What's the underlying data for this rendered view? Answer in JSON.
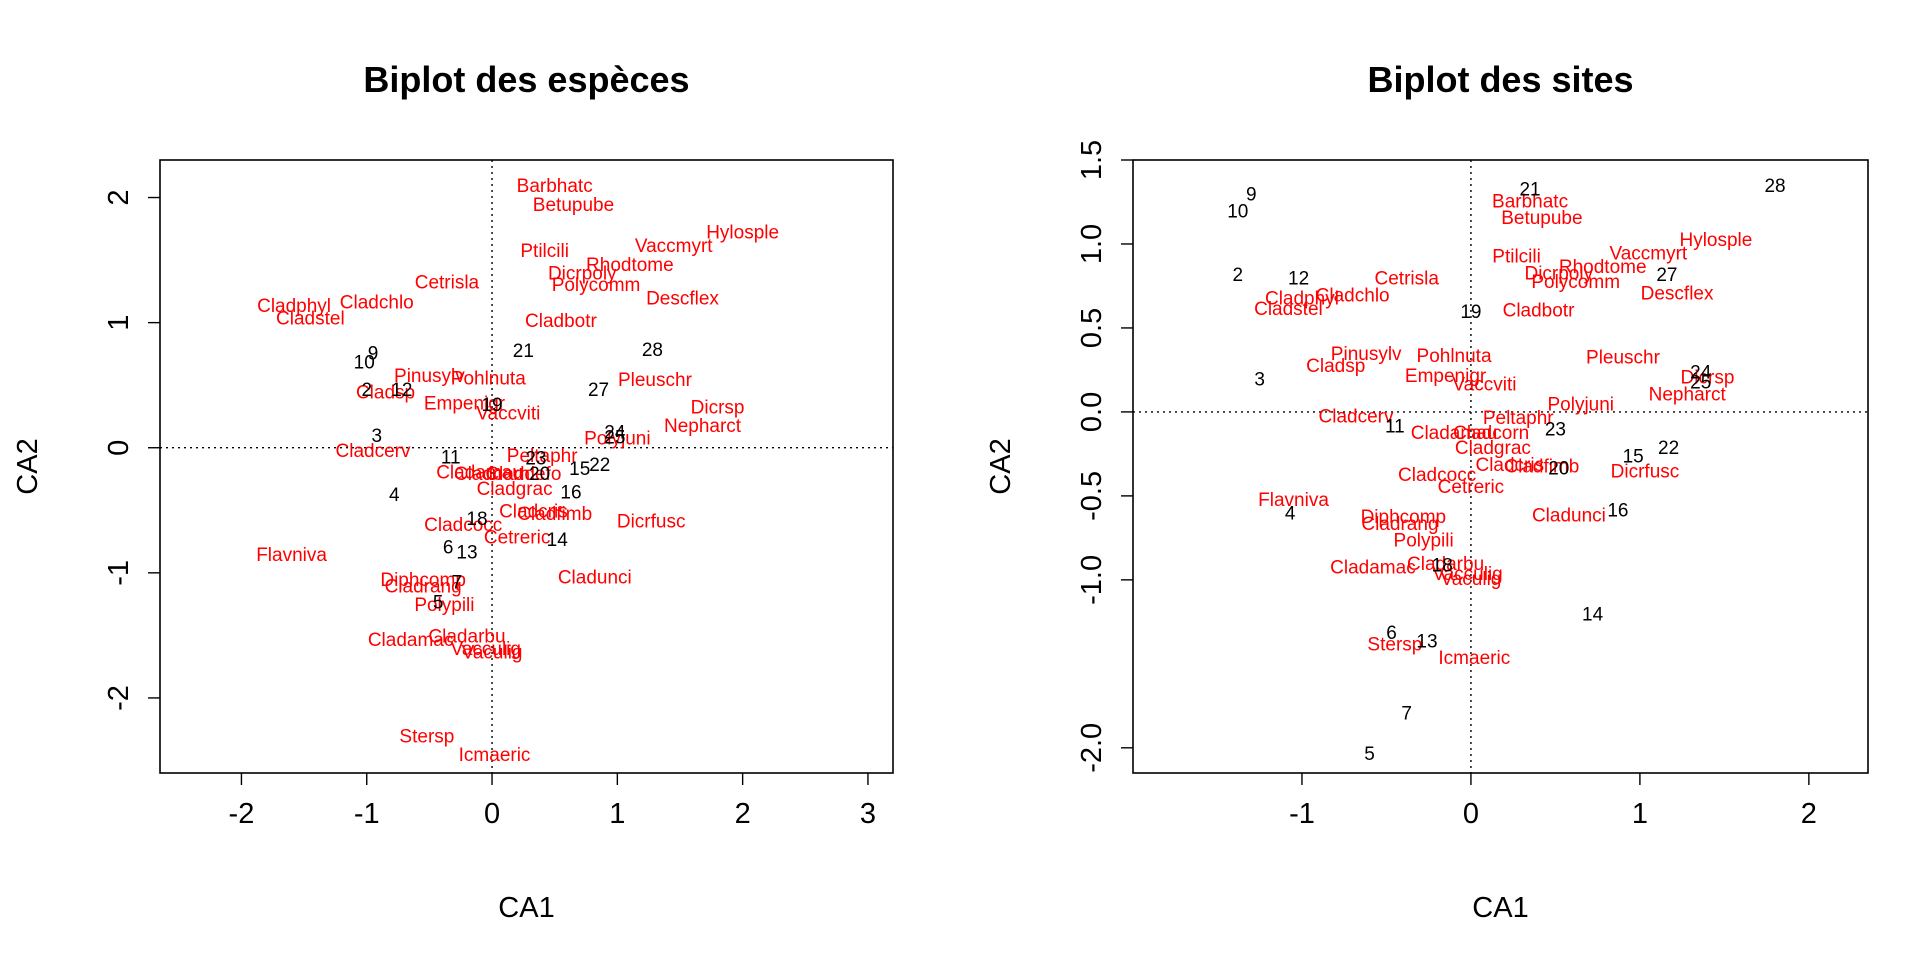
{
  "colors": {
    "species": "#ff0000",
    "sites": "#000000",
    "frame": "#000000"
  },
  "chart_data": [
    {
      "type": "scatter",
      "title": "Biplot des espèces",
      "xlabel": "CA1",
      "ylabel": "CA2",
      "xlim": [
        -2.65,
        3.2
      ],
      "ylim": [
        -2.6,
        2.3
      ],
      "xticks": [
        "-2",
        "-1",
        "0",
        "1",
        "2",
        "3"
      ],
      "yticks": [
        "-2",
        "-1",
        "0",
        "1",
        "2"
      ],
      "reference_lines": "dotted lines at x = 0 and y = 0",
      "series": [
        {
          "name": "species",
          "color": "#ff0000",
          "points": [
            {
              "label": "Barbhatc",
              "x": 0.5,
              "y": 2.1
            },
            {
              "label": "Betupube",
              "x": 0.65,
              "y": 1.95
            },
            {
              "label": "Hylosple",
              "x": 2.0,
              "y": 1.73
            },
            {
              "label": "Vaccmyrt",
              "x": 1.45,
              "y": 1.62
            },
            {
              "label": "Ptilcili",
              "x": 0.42,
              "y": 1.58
            },
            {
              "label": "Rhodtome",
              "x": 1.1,
              "y": 1.47
            },
            {
              "label": "Dicrpoly",
              "x": 0.72,
              "y": 1.4
            },
            {
              "label": "Polycomm",
              "x": 0.83,
              "y": 1.31
            },
            {
              "label": "Cetrisla",
              "x": -0.36,
              "y": 1.33
            },
            {
              "label": "Descflex",
              "x": 1.52,
              "y": 1.2
            },
            {
              "label": "Cladphyl",
              "x": -1.58,
              "y": 1.14
            },
            {
              "label": "Cladchlo",
              "x": -0.92,
              "y": 1.17
            },
            {
              "label": "Cladstel",
              "x": -1.45,
              "y": 1.04
            },
            {
              "label": "Cladbotr",
              "x": 0.55,
              "y": 1.02
            },
            {
              "label": "Pinusylv",
              "x": -0.5,
              "y": 0.58
            },
            {
              "label": "Pohlnuta",
              "x": -0.03,
              "y": 0.56
            },
            {
              "label": "Pleuschr",
              "x": 1.3,
              "y": 0.55
            },
            {
              "label": "Cladsp",
              "x": -0.85,
              "y": 0.45
            },
            {
              "label": "Empenigr",
              "x": -0.22,
              "y": 0.36
            },
            {
              "label": "Vaccviti",
              "x": 0.13,
              "y": 0.28
            },
            {
              "label": "Dicrsp",
              "x": 1.8,
              "y": 0.33
            },
            {
              "label": "Nepharct",
              "x": 1.68,
              "y": 0.18
            },
            {
              "label": "Polyjuni",
              "x": 1.0,
              "y": 0.08
            },
            {
              "label": "Cladcerv",
              "x": -0.95,
              "y": -0.02
            },
            {
              "label": "Peltaphr",
              "x": 0.4,
              "y": -0.06
            },
            {
              "label": "Cladamau",
              "x": -0.1,
              "y": -0.19
            },
            {
              "label": "Claddefo",
              "x": 0.25,
              "y": -0.2
            },
            {
              "label": "Cladcorn",
              "x": 0.0,
              "y": -0.2
            },
            {
              "label": "Cladgrac",
              "x": 0.18,
              "y": -0.32
            },
            {
              "label": "Cladcris",
              "x": 0.33,
              "y": -0.5
            },
            {
              "label": "Cladfimb",
              "x": 0.5,
              "y": -0.52
            },
            {
              "label": "Dicrfusc",
              "x": 1.27,
              "y": -0.58
            },
            {
              "label": "Cladcocc",
              "x": -0.23,
              "y": -0.61
            },
            {
              "label": "Cetreric",
              "x": 0.2,
              "y": -0.71
            },
            {
              "label": "Flavniva",
              "x": -1.6,
              "y": -0.85
            },
            {
              "label": "Cladunci",
              "x": 0.82,
              "y": -1.03
            },
            {
              "label": "Diphcomp",
              "x": -0.55,
              "y": -1.05
            },
            {
              "label": "Cladrang",
              "x": -0.55,
              "y": -1.1
            },
            {
              "label": "Polypili",
              "x": -0.38,
              "y": -1.25
            },
            {
              "label": "Cladarbu",
              "x": -0.2,
              "y": -1.5
            },
            {
              "label": "Cladamac",
              "x": -0.65,
              "y": -1.53
            },
            {
              "label": "Vacculig",
              "x": -0.05,
              "y": -1.6
            },
            {
              "label": "Vaculig",
              "x": 0.0,
              "y": -1.63
            },
            {
              "label": "Stersp",
              "x": -0.52,
              "y": -2.3
            },
            {
              "label": "Icmaeric",
              "x": 0.02,
              "y": -2.45
            }
          ]
        },
        {
          "name": "sites",
          "color": "#000000",
          "points": [
            {
              "label": "9",
              "x": -0.95,
              "y": 0.76
            },
            {
              "label": "10",
              "x": -1.02,
              "y": 0.69
            },
            {
              "label": "2",
              "x": -1.0,
              "y": 0.47
            },
            {
              "label": "12",
              "x": -0.72,
              "y": 0.47
            },
            {
              "label": "19",
              "x": 0.0,
              "y": 0.35
            },
            {
              "label": "21",
              "x": 0.25,
              "y": 0.78
            },
            {
              "label": "28",
              "x": 1.28,
              "y": 0.79
            },
            {
              "label": "27",
              "x": 0.85,
              "y": 0.47
            },
            {
              "label": "3",
              "x": -0.92,
              "y": 0.1
            },
            {
              "label": "24",
              "x": 0.98,
              "y": 0.13
            },
            {
              "label": "25",
              "x": 0.98,
              "y": 0.09
            },
            {
              "label": "11",
              "x": -0.33,
              "y": -0.07
            },
            {
              "label": "23",
              "x": 0.35,
              "y": -0.08
            },
            {
              "label": "20",
              "x": 0.38,
              "y": -0.2
            },
            {
              "label": "15",
              "x": 0.7,
              "y": -0.16
            },
            {
              "label": "22",
              "x": 0.86,
              "y": -0.13
            },
            {
              "label": "16",
              "x": 0.63,
              "y": -0.35
            },
            {
              "label": "4",
              "x": -0.78,
              "y": -0.37
            },
            {
              "label": "18",
              "x": -0.12,
              "y": -0.56
            },
            {
              "label": "14",
              "x": 0.52,
              "y": -0.73
            },
            {
              "label": "6",
              "x": -0.35,
              "y": -0.79
            },
            {
              "label": "13",
              "x": -0.2,
              "y": -0.83
            },
            {
              "label": "7",
              "x": -0.28,
              "y": -1.07
            },
            {
              "label": "5",
              "x": -0.43,
              "y": -1.23
            }
          ]
        }
      ]
    },
    {
      "type": "scatter",
      "title": "Biplot des sites",
      "xlabel": "CA1",
      "ylabel": "CA2",
      "xlim": [
        -2.0,
        2.35
      ],
      "ylim": [
        -2.15,
        1.5
      ],
      "xticks": [
        "-1",
        "0",
        "1",
        "2"
      ],
      "yticks": [
        "-2.0",
        "-1.0",
        "-0.5",
        "0.0",
        "0.5",
        "1.0",
        "1.5"
      ],
      "reference_lines": "dotted lines at x = 0 and y = 0",
      "series": [
        {
          "name": "species",
          "color": "#ff0000",
          "points": [
            {
              "label": "Barbhatc",
              "x": 0.35,
              "y": 1.26
            },
            {
              "label": "Betupube",
              "x": 0.42,
              "y": 1.16
            },
            {
              "label": "Hylosple",
              "x": 1.45,
              "y": 1.03
            },
            {
              "label": "Vaccmyrt",
              "x": 1.05,
              "y": 0.95
            },
            {
              "label": "Ptilcili",
              "x": 0.27,
              "y": 0.93
            },
            {
              "label": "Rhodtome",
              "x": 0.78,
              "y": 0.87
            },
            {
              "label": "Dicrpoly",
              "x": 0.52,
              "y": 0.83
            },
            {
              "label": "Polycomm",
              "x": 0.62,
              "y": 0.78
            },
            {
              "label": "Descflex",
              "x": 1.22,
              "y": 0.71
            },
            {
              "label": "Cetrisla",
              "x": -0.38,
              "y": 0.8
            },
            {
              "label": "Cladphyl",
              "x": -1.0,
              "y": 0.68
            },
            {
              "label": "Cladchlo",
              "x": -0.7,
              "y": 0.7
            },
            {
              "label": "Cladstel",
              "x": -1.08,
              "y": 0.62
            },
            {
              "label": "Cladbotr",
              "x": 0.4,
              "y": 0.61
            },
            {
              "label": "Pinusylv",
              "x": -0.62,
              "y": 0.35
            },
            {
              "label": "Pohlnuta",
              "x": -0.1,
              "y": 0.34
            },
            {
              "label": "Cladsp",
              "x": -0.8,
              "y": 0.28
            },
            {
              "label": "Pleuschr",
              "x": 0.9,
              "y": 0.33
            },
            {
              "label": "Empenigr",
              "x": -0.15,
              "y": 0.22
            },
            {
              "label": "Vaccviti",
              "x": 0.08,
              "y": 0.17
            },
            {
              "label": "Dicrsp",
              "x": 1.4,
              "y": 0.21
            },
            {
              "label": "Nepharct",
              "x": 1.28,
              "y": 0.11
            },
            {
              "label": "Polyjuni",
              "x": 0.65,
              "y": 0.05
            },
            {
              "label": "Cladcerv",
              "x": -0.68,
              "y": -0.02
            },
            {
              "label": "Peltaphr",
              "x": 0.28,
              "y": -0.03
            },
            {
              "label": "Cladamau",
              "x": -0.1,
              "y": -0.12
            },
            {
              "label": "Cladcorn",
              "x": 0.12,
              "y": -0.12
            },
            {
              "label": "Cladgrac",
              "x": 0.13,
              "y": -0.21
            },
            {
              "label": "Cladcris",
              "x": 0.23,
              "y": -0.31
            },
            {
              "label": "Cladfimb",
              "x": 0.42,
              "y": -0.32
            },
            {
              "label": "Dicrfusc",
              "x": 1.03,
              "y": -0.35
            },
            {
              "label": "Cladcocc",
              "x": -0.2,
              "y": -0.37
            },
            {
              "label": "Cetreric",
              "x": 0.0,
              "y": -0.44
            },
            {
              "label": "Flavniva",
              "x": -1.05,
              "y": -0.52
            },
            {
              "label": "Cladunci",
              "x": 0.58,
              "y": -0.61
            },
            {
              "label": "Diphcomp",
              "x": -0.4,
              "y": -0.62
            },
            {
              "label": "Cladrang",
              "x": -0.42,
              "y": -0.66
            },
            {
              "label": "Polypili",
              "x": -0.28,
              "y": -0.76
            },
            {
              "label": "Cladarbu",
              "x": -0.15,
              "y": -0.9
            },
            {
              "label": "Cladamac",
              "x": -0.58,
              "y": -0.92
            },
            {
              "label": "Vacculig",
              "x": -0.02,
              "y": -0.96
            },
            {
              "label": "Vaculig",
              "x": 0.0,
              "y": -0.99
            },
            {
              "label": "Stersp",
              "x": -0.45,
              "y": -1.38
            },
            {
              "label": "Icmaeric",
              "x": 0.02,
              "y": -1.46
            }
          ]
        },
        {
          "name": "sites",
          "color": "#000000",
          "points": [
            {
              "label": "9",
              "x": -1.3,
              "y": 1.3
            },
            {
              "label": "10",
              "x": -1.38,
              "y": 1.2
            },
            {
              "label": "2",
              "x": -1.38,
              "y": 0.82
            },
            {
              "label": "12",
              "x": -1.02,
              "y": 0.8
            },
            {
              "label": "3",
              "x": -1.25,
              "y": 0.2
            },
            {
              "label": "21",
              "x": 0.35,
              "y": 1.33
            },
            {
              "label": "28",
              "x": 1.8,
              "y": 1.35
            },
            {
              "label": "27",
              "x": 1.16,
              "y": 0.82
            },
            {
              "label": "19",
              "x": 0.0,
              "y": 0.6
            },
            {
              "label": "24",
              "x": 1.36,
              "y": 0.24
            },
            {
              "label": "25",
              "x": 1.36,
              "y": 0.18
            },
            {
              "label": "11",
              "x": -0.45,
              "y": -0.08
            },
            {
              "label": "23",
              "x": 0.5,
              "y": -0.1
            },
            {
              "label": "20",
              "x": 0.52,
              "y": -0.33
            },
            {
              "label": "15",
              "x": 0.96,
              "y": -0.26
            },
            {
              "label": "22",
              "x": 1.17,
              "y": -0.21
            },
            {
              "label": "16",
              "x": 0.87,
              "y": -0.58
            },
            {
              "label": "4",
              "x": -1.07,
              "y": -0.6
            },
            {
              "label": "18",
              "x": -0.17,
              "y": -0.91
            },
            {
              "label": "14",
              "x": 0.72,
              "y": -1.2
            },
            {
              "label": "6",
              "x": -0.47,
              "y": -1.31
            },
            {
              "label": "13",
              "x": -0.26,
              "y": -1.36
            },
            {
              "label": "7",
              "x": -0.38,
              "y": -1.79
            },
            {
              "label": "5",
              "x": -0.6,
              "y": -2.03
            }
          ]
        }
      ]
    }
  ]
}
